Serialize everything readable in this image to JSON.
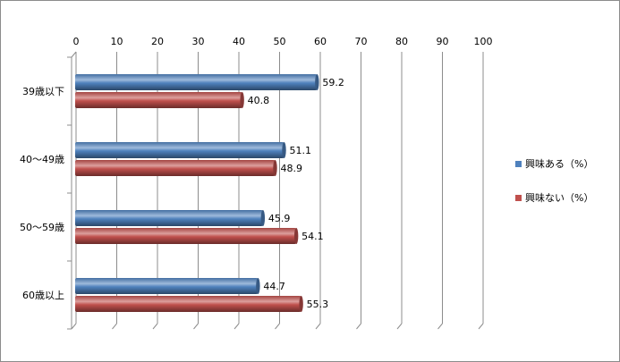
{
  "chart_data": {
    "type": "bar",
    "orientation": "horizontal",
    "style": "3d-cylinder",
    "categories": [
      "39歳以下",
      "40～49歳",
      "50～59歳",
      "60歳以上"
    ],
    "series": [
      {
        "name": "興味ある（%）",
        "color": "#4F81BD",
        "values": [
          59.2,
          51.1,
          45.9,
          44.7
        ]
      },
      {
        "name": "興味ない（%）",
        "color": "#C0504D",
        "values": [
          40.8,
          48.9,
          54.1,
          55.3
        ]
      }
    ],
    "xlim": [
      0,
      100
    ],
    "ticks": [
      "0",
      "10",
      "20",
      "30",
      "40",
      "50",
      "60",
      "70",
      "80",
      "90",
      "100"
    ],
    "data_labels": [
      [
        "59.2",
        "51.1",
        "45.9",
        "44.7"
      ],
      [
        "40.8",
        "48.9",
        "54.1",
        "55.3"
      ]
    ],
    "grid": true,
    "legend_position": "right",
    "title": "",
    "xlabel": "",
    "ylabel": ""
  }
}
